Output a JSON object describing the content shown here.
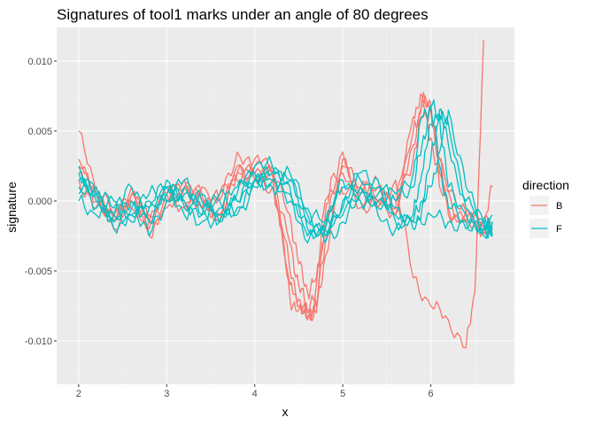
{
  "chart_data": {
    "type": "line",
    "title": "Signatures of tool1 marks under an angle of 80 degrees",
    "xlabel": "x",
    "ylabel": "signature",
    "xlim": [
      1.75,
      6.95
    ],
    "ylim": [
      -0.0131,
      0.0124
    ],
    "x_ticks": [
      2,
      3,
      4,
      5,
      6
    ],
    "x_tick_labels": [
      "2",
      "3",
      "4",
      "5",
      "6"
    ],
    "y_ticks": [
      -0.01,
      -0.005,
      0,
      0.005,
      0.01
    ],
    "y_tick_labels": [
      "-0.010",
      "-0.005",
      "0.000",
      "0.005",
      "0.010"
    ],
    "grid": true,
    "legend": {
      "title": "direction",
      "placement": "right"
    },
    "series_colors": {
      "B": "#F8766D",
      "F": "#00BFC4"
    },
    "panel_background": "#EBEBEB",
    "series": [
      {
        "name": "B",
        "group": "B",
        "x": [
          2.0,
          2.2,
          2.4,
          2.6,
          2.8,
          3.0,
          3.2,
          3.4,
          3.6,
          3.8,
          4.0,
          4.2,
          4.3,
          4.4,
          4.5,
          4.6,
          4.7,
          4.8,
          4.9,
          5.0,
          5.2,
          5.4,
          5.6,
          5.8,
          6.0,
          6.2,
          6.4,
          6.5,
          6.6
        ],
        "y": [
          0.005,
          0.0005,
          -0.001,
          0.0005,
          -0.0015,
          0.0,
          0.001,
          0.0,
          -0.001,
          0.002,
          0.002,
          0.0015,
          -0.002,
          -0.007,
          -0.0078,
          -0.0082,
          -0.0075,
          -0.001,
          0.002,
          0.0005,
          0.001,
          -0.0005,
          0.0015,
          -0.0055,
          -0.0075,
          -0.0085,
          -0.0105,
          -0.0065,
          0.0115
        ]
      },
      {
        "name": "B",
        "group": "B",
        "x": [
          2.0,
          2.2,
          2.4,
          2.6,
          2.8,
          3.0,
          3.2,
          3.4,
          3.6,
          3.8,
          4.0,
          4.2,
          4.4,
          4.5,
          4.6,
          4.7,
          4.8,
          5.0,
          5.2,
          5.4,
          5.6,
          5.8,
          5.9,
          6.0,
          6.1,
          6.2,
          6.4,
          6.6,
          6.7
        ],
        "y": [
          0.003,
          0.0,
          -0.0015,
          0.001,
          -0.002,
          0.0,
          0.0015,
          -0.0005,
          -0.001,
          0.0025,
          0.0025,
          0.002,
          -0.006,
          -0.0075,
          -0.008,
          -0.006,
          0.0,
          0.002,
          -0.0005,
          0.0,
          -0.001,
          0.005,
          0.0068,
          0.007,
          0.003,
          -0.001,
          -0.0015,
          -0.002,
          0.001
        ]
      },
      {
        "name": "B",
        "group": "B",
        "x": [
          2.0,
          2.2,
          2.4,
          2.6,
          2.8,
          3.0,
          3.2,
          3.4,
          3.6,
          3.8,
          4.0,
          4.2,
          4.4,
          4.5,
          4.6,
          4.7,
          4.8,
          5.0,
          5.2,
          5.4,
          5.6,
          5.8,
          5.9,
          6.0,
          6.1,
          6.3,
          6.5,
          6.7
        ],
        "y": [
          0.0025,
          0.001,
          -0.001,
          0.0,
          -0.001,
          0.0005,
          0.0,
          -0.0005,
          0.0005,
          0.0015,
          0.003,
          0.0025,
          -0.005,
          -0.007,
          -0.0085,
          -0.0075,
          -0.003,
          0.0025,
          0.0,
          0.001,
          -0.001,
          0.004,
          0.0072,
          0.0065,
          0.002,
          -0.001,
          -0.0015,
          -0.002
        ]
      },
      {
        "name": "B",
        "group": "B",
        "x": [
          2.0,
          2.2,
          2.4,
          2.6,
          2.8,
          3.0,
          3.2,
          3.4,
          3.6,
          3.8,
          4.0,
          4.2,
          4.4,
          4.5,
          4.6,
          4.7,
          4.8,
          5.0,
          5.2,
          5.4,
          5.6,
          5.8,
          5.9,
          6.0,
          6.1,
          6.3,
          6.5,
          6.7
        ],
        "y": [
          0.002,
          0.0005,
          -0.002,
          0.0005,
          -0.0025,
          -0.0005,
          0.001,
          0.0005,
          -0.0015,
          0.002,
          0.0015,
          0.001,
          -0.003,
          -0.006,
          -0.0078,
          -0.008,
          -0.004,
          0.003,
          0.0005,
          0.0015,
          -0.0005,
          0.006,
          0.0075,
          0.0045,
          0.001,
          -0.0015,
          -0.001,
          -0.0025
        ]
      },
      {
        "name": "B",
        "group": "B",
        "x": [
          2.0,
          2.2,
          2.4,
          2.6,
          2.8,
          3.0,
          3.2,
          3.4,
          3.6,
          3.8,
          4.0,
          4.2,
          4.4,
          4.5,
          4.6,
          4.7,
          4.8,
          5.0,
          5.2,
          5.4,
          5.6,
          5.8,
          5.9,
          6.0,
          6.1,
          6.3,
          6.5,
          6.7
        ],
        "y": [
          0.0015,
          -0.0005,
          -0.001,
          -0.0005,
          -0.0015,
          0.0005,
          -0.0005,
          0.001,
          0.0,
          0.0035,
          0.002,
          0.002,
          -0.001,
          -0.0045,
          -0.0065,
          -0.0055,
          -0.002,
          0.0035,
          0.001,
          0.0,
          0.0,
          0.003,
          0.006,
          0.0065,
          0.003,
          -0.0005,
          -0.0015,
          -0.0015
        ]
      },
      {
        "name": "F",
        "group": "F",
        "x": [
          2.0,
          2.2,
          2.4,
          2.6,
          2.8,
          3.0,
          3.2,
          3.4,
          3.6,
          3.8,
          4.0,
          4.2,
          4.4,
          4.6,
          4.8,
          5.0,
          5.2,
          5.4,
          5.6,
          5.8,
          5.9,
          6.0,
          6.1,
          6.2,
          6.4,
          6.6,
          6.7
        ],
        "y": [
          0.002,
          0.0,
          -0.001,
          0.001,
          -0.0005,
          0.0015,
          -0.0005,
          -0.0015,
          0.0005,
          0.0,
          0.0015,
          0.002,
          0.001,
          -0.0025,
          -0.002,
          0.0015,
          0.0005,
          -0.0005,
          0.0,
          0.002,
          0.006,
          0.0068,
          0.0025,
          -0.0005,
          -0.0015,
          -0.002,
          -0.001
        ]
      },
      {
        "name": "F",
        "group": "F",
        "x": [
          2.0,
          2.2,
          2.4,
          2.6,
          2.8,
          3.0,
          3.2,
          3.4,
          3.6,
          3.8,
          4.0,
          4.2,
          4.4,
          4.6,
          4.8,
          5.0,
          5.2,
          5.4,
          5.6,
          5.8,
          5.9,
          6.0,
          6.1,
          6.2,
          6.4,
          6.6,
          6.7
        ],
        "y": [
          0.0015,
          0.0005,
          -0.0015,
          0.0,
          -0.0025,
          0.0,
          0.0015,
          -0.0005,
          -0.001,
          0.0005,
          0.002,
          0.0015,
          0.0,
          -0.002,
          -0.0015,
          0.001,
          0.0015,
          0.0,
          0.0005,
          0.001,
          0.004,
          0.0068,
          0.006,
          0.001,
          -0.001,
          -0.0025,
          -0.0015
        ]
      },
      {
        "name": "F",
        "group": "F",
        "x": [
          2.0,
          2.2,
          2.4,
          2.6,
          2.8,
          3.0,
          3.2,
          3.4,
          3.6,
          3.8,
          4.0,
          4.2,
          4.4,
          4.6,
          4.8,
          5.0,
          5.2,
          5.4,
          5.6,
          5.8,
          5.9,
          6.0,
          6.1,
          6.2,
          6.4,
          6.6,
          6.7
        ],
        "y": [
          0.001,
          -0.0005,
          0.0,
          -0.001,
          0.0005,
          0.001,
          0.0,
          -0.001,
          0.0,
          0.001,
          0.0025,
          0.0025,
          0.0015,
          -0.0015,
          -0.0025,
          0.0,
          0.002,
          0.0015,
          -0.0005,
          -0.0015,
          0.0,
          0.003,
          0.0062,
          0.0055,
          0.0,
          -0.0015,
          -0.002
        ]
      },
      {
        "name": "F",
        "group": "F",
        "x": [
          2.0,
          2.2,
          2.4,
          2.6,
          2.8,
          3.0,
          3.2,
          3.4,
          3.6,
          3.8,
          4.0,
          4.2,
          4.4,
          4.6,
          4.8,
          5.0,
          5.2,
          5.4,
          5.6,
          5.8,
          5.9,
          6.0,
          6.1,
          6.2,
          6.4,
          6.6,
          6.7
        ],
        "y": [
          0.0005,
          0.001,
          -0.0005,
          -0.0015,
          0.0,
          0.0005,
          -0.001,
          0.0005,
          -0.0015,
          0.0,
          0.0015,
          0.002,
          0.002,
          -0.0005,
          -0.003,
          -0.0015,
          0.0005,
          0.001,
          -0.0015,
          -0.001,
          0.002,
          0.0055,
          0.0065,
          0.004,
          -0.0005,
          -0.002,
          -0.0025
        ]
      },
      {
        "name": "F",
        "group": "F",
        "x": [
          2.0,
          2.2,
          2.4,
          2.6,
          2.8,
          3.0,
          3.2,
          3.4,
          3.6,
          3.8,
          4.0,
          4.2,
          4.4,
          4.6,
          4.8,
          5.0,
          5.2,
          5.4,
          5.6,
          5.8,
          5.9,
          6.0,
          6.1,
          6.2,
          6.4,
          6.6,
          6.7
        ],
        "y": [
          0.0,
          -0.001,
          -0.001,
          -0.0005,
          -0.0015,
          0.001,
          0.0005,
          0.0,
          -0.0005,
          -0.001,
          0.001,
          0.0015,
          0.0015,
          -0.001,
          -0.0015,
          -0.001,
          0.0,
          0.0005,
          -0.001,
          -0.002,
          -0.0005,
          0.001,
          0.0035,
          0.0065,
          0.001,
          -0.0015,
          -0.002
        ]
      },
      {
        "name": "F",
        "group": "F",
        "x": [
          2.0,
          2.2,
          2.4,
          2.6,
          2.8,
          3.0,
          3.2,
          3.4,
          3.6,
          3.8,
          4.0,
          4.2,
          4.4,
          4.6,
          4.8,
          5.0,
          5.2,
          5.4,
          5.6,
          5.8,
          6.0,
          6.2,
          6.4,
          6.6,
          6.7
        ],
        "y": [
          0.0025,
          0.0005,
          -0.002,
          -0.001,
          -0.0005,
          0.0,
          0.001,
          -0.001,
          -0.0015,
          -0.0005,
          0.0015,
          0.001,
          0.0005,
          -0.003,
          -0.002,
          -0.0005,
          0.001,
          -0.001,
          -0.002,
          -0.0015,
          -0.001,
          -0.0015,
          -0.002,
          -0.0015,
          -0.0025
        ]
      }
    ]
  }
}
